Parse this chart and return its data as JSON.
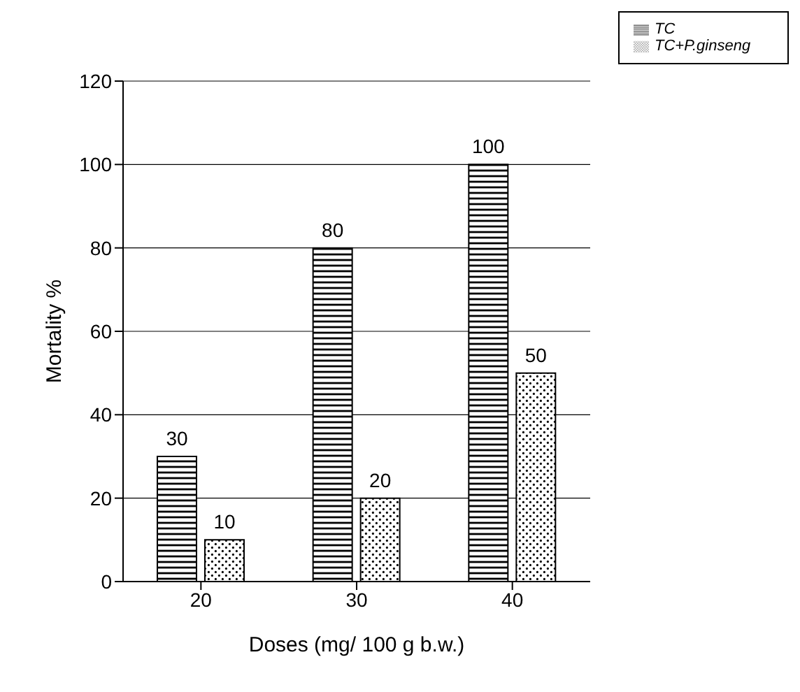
{
  "chart_data": {
    "type": "bar",
    "xlabel": "Doses (mg/ 100 g b.w.)",
    "ylabel": "Mortality %",
    "categories": [
      "20",
      "30",
      "40"
    ],
    "series": [
      {
        "name": "TC",
        "color": "#000000",
        "values": [
          30,
          80,
          100
        ]
      },
      {
        "name": "TC+P.ginseng",
        "color": "#000000",
        "values": [
          10,
          20,
          50
        ]
      }
    ],
    "ylim": [
      0,
      120
    ],
    "yticks": [
      0,
      20,
      40,
      60,
      80,
      100,
      120
    ],
    "grid": "y",
    "legend": "top right",
    "data_labels": true
  }
}
